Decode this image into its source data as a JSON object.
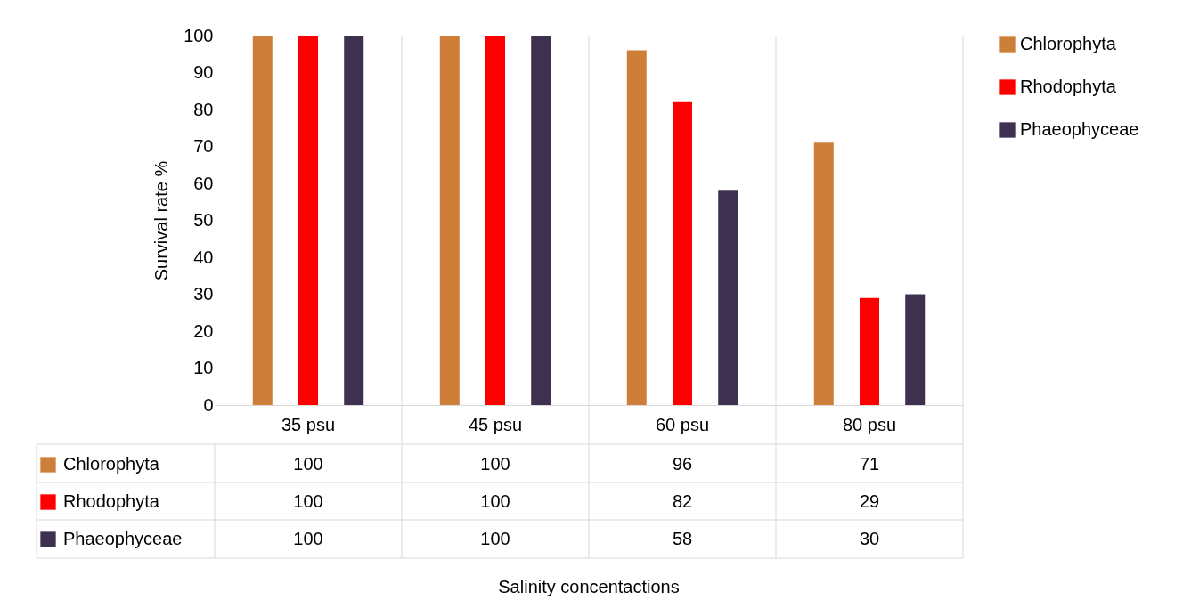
{
  "chart_data": {
    "type": "bar",
    "annotations": [
      "Salinity concentactions"
    ],
    "ylabel": "Survival rate %",
    "categories": [
      "35 psu",
      "45 psu",
      "60 psu",
      "80 psu"
    ],
    "series": [
      {
        "name": "Chlorophyta",
        "color": "#cd7f3a",
        "values": [
          100,
          100,
          96,
          71
        ]
      },
      {
        "name": "Rhodophyta",
        "color": "#ff0000",
        "values": [
          100,
          100,
          82,
          29
        ]
      },
      {
        "name": "Phaeophyceae",
        "color": "#3e3150",
        "values": [
          100,
          100,
          58,
          30
        ]
      }
    ],
    "ylim": [
      0,
      100
    ],
    "yticks": [
      0,
      10,
      20,
      30,
      40,
      50,
      60,
      70,
      80,
      90,
      100
    ],
    "legend": "right",
    "data_labels": true
  }
}
